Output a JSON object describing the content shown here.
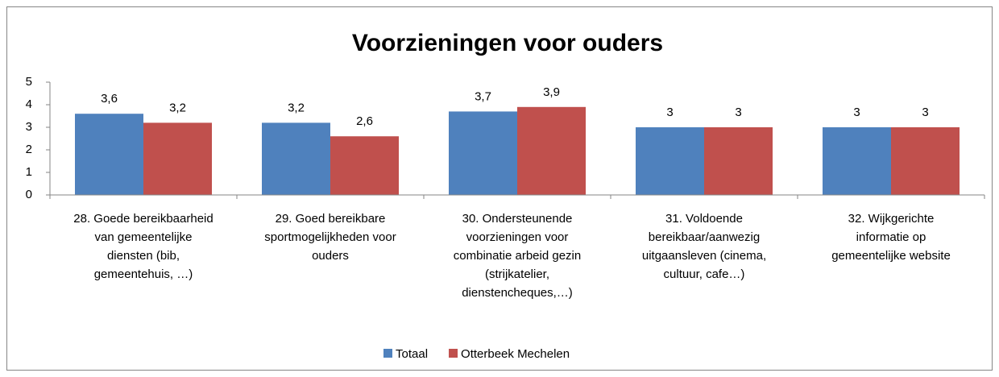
{
  "chart_data": {
    "type": "bar",
    "title": "Voorzieningen voor ouders",
    "categories": [
      [
        "28. Goede bereikbaarheid",
        "van gemeentelijke",
        "diensten (bib,",
        "gemeentehuis, …)"
      ],
      [
        "29. Goed bereikbare",
        "sportmogelijkheden voor",
        "ouders"
      ],
      [
        "30. Ondersteunende",
        "voorzieningen voor",
        "combinatie arbeid gezin",
        "(strijkatelier,",
        "dienstencheques,…)"
      ],
      [
        "31. Voldoende",
        "bereikbaar/aanwezig",
        "uitgaansleven (cinema,",
        "cultuur, cafe…)"
      ],
      [
        "32. Wijkgerichte",
        "informatie op",
        "gemeentelijke website"
      ]
    ],
    "series": [
      {
        "name": "Totaal",
        "color": "#4f81bd",
        "values": [
          3.6,
          3.2,
          3.7,
          3,
          3
        ],
        "value_labels": [
          "3,6",
          "3,2",
          "3,7",
          "3",
          "3"
        ]
      },
      {
        "name": "Otterbeek Mechelen",
        "color": "#c0504d",
        "values": [
          3.2,
          2.6,
          3.9,
          3,
          3
        ],
        "value_labels": [
          "3,2",
          "2,6",
          "3,9",
          "3",
          "3"
        ]
      }
    ],
    "ylim": [
      0,
      5
    ],
    "yticks": [
      0,
      1,
      2,
      3,
      4,
      5
    ],
    "grid": false
  }
}
